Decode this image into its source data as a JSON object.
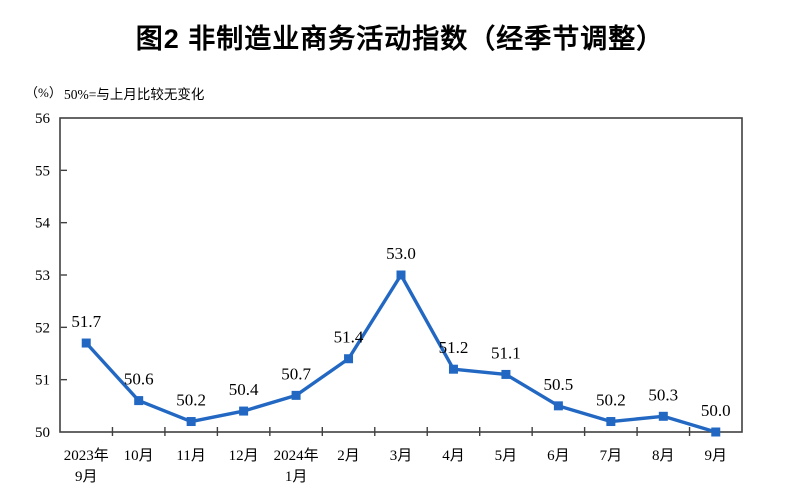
{
  "page": {
    "title": "图2  非制造业商务活动指数（经季节调整）"
  },
  "chart_header": {
    "unit": "（%）",
    "note": "50%=与上月比较无变化"
  },
  "chart_data": {
    "type": "line",
    "title": "图2 非制造业商务活动指数（经季节调整）",
    "note": "50%=与上月比较无变化",
    "unit": "（%）",
    "categories": [
      [
        "2023年",
        "9月"
      ],
      [
        "10月"
      ],
      [
        "11月"
      ],
      [
        "12月"
      ],
      [
        "2024年",
        "1月"
      ],
      [
        "2月"
      ],
      [
        "3月"
      ],
      [
        "4月"
      ],
      [
        "5月"
      ],
      [
        "6月"
      ],
      [
        "7月"
      ],
      [
        "8月"
      ],
      [
        "9月"
      ]
    ],
    "values": [
      51.7,
      50.6,
      50.2,
      50.4,
      50.7,
      51.4,
      53.0,
      51.2,
      51.1,
      50.5,
      50.2,
      50.3,
      50.0
    ],
    "xlabel": "",
    "ylabel": "",
    "ylim": [
      50,
      56
    ],
    "yticks": [
      50,
      51,
      52,
      53,
      54,
      55,
      56
    ],
    "grid": false,
    "legend_position": "none",
    "marker": "square",
    "line_color": "#2268C3",
    "axis_color": "#404040",
    "text_color": "#000000"
  }
}
